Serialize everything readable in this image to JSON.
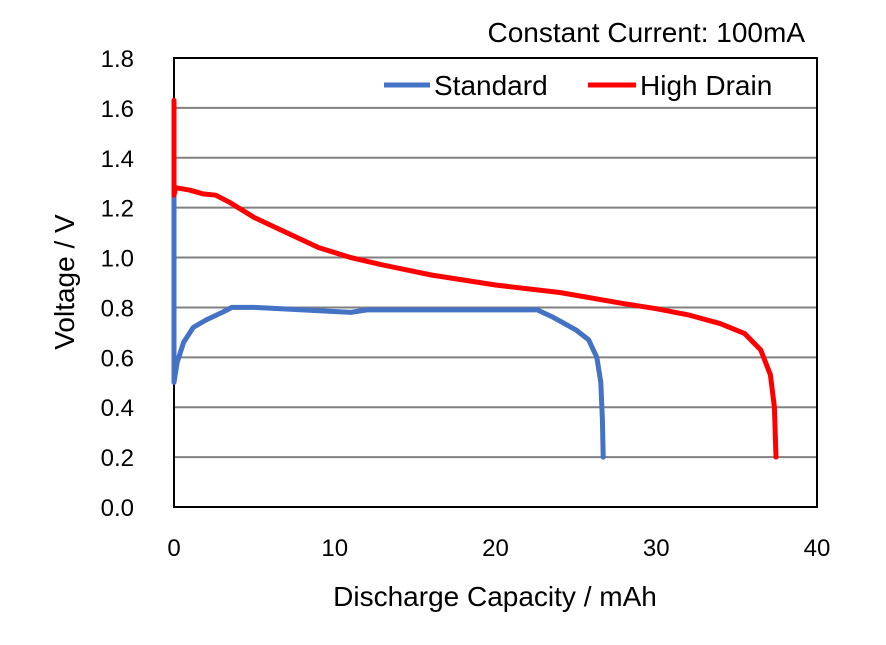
{
  "chart_data": {
    "type": "line",
    "title": "Constant Current: 100mA",
    "xlabel": "Discharge Capacity / mAh",
    "ylabel": "Voltage / V",
    "xlim": [
      0,
      40
    ],
    "ylim": [
      0,
      1.8
    ],
    "xticks": [
      "0",
      "10",
      "20",
      "30",
      "40"
    ],
    "yticks": [
      "0.0",
      "0.2",
      "0.4",
      "0.6",
      "0.8",
      "1.0",
      "1.2",
      "1.4",
      "1.6",
      "1.8"
    ],
    "grid": "horizontal",
    "legend_position": "top-right",
    "series": [
      {
        "name": "Standard",
        "color": "#4472c4",
        "points": [
          [
            0,
            1.25
          ],
          [
            0,
            0.5
          ],
          [
            0.2,
            0.58
          ],
          [
            0.6,
            0.66
          ],
          [
            1.2,
            0.72
          ],
          [
            2,
            0.75
          ],
          [
            3,
            0.78
          ],
          [
            3.6,
            0.8
          ],
          [
            5,
            0.8
          ],
          [
            8,
            0.79
          ],
          [
            11,
            0.78
          ],
          [
            12,
            0.79
          ],
          [
            15,
            0.79
          ],
          [
            22.6,
            0.79
          ],
          [
            23.6,
            0.76
          ],
          [
            25,
            0.71
          ],
          [
            25.8,
            0.67
          ],
          [
            26.3,
            0.6
          ],
          [
            26.55,
            0.5
          ],
          [
            26.65,
            0.35
          ],
          [
            26.7,
            0.2
          ]
        ]
      },
      {
        "name": "High Drain",
        "color": "#ff0000",
        "points": [
          [
            0,
            1.63
          ],
          [
            0,
            1.25
          ],
          [
            0.1,
            1.28
          ],
          [
            1,
            1.27
          ],
          [
            1.8,
            1.255
          ],
          [
            2.6,
            1.25
          ],
          [
            3.5,
            1.22
          ],
          [
            5,
            1.16
          ],
          [
            7,
            1.1
          ],
          [
            9,
            1.04
          ],
          [
            11,
            1.0
          ],
          [
            13,
            0.97
          ],
          [
            16,
            0.93
          ],
          [
            20,
            0.89
          ],
          [
            24,
            0.86
          ],
          [
            28,
            0.815
          ],
          [
            30,
            0.795
          ],
          [
            32,
            0.77
          ],
          [
            34,
            0.735
          ],
          [
            35.5,
            0.695
          ],
          [
            36.5,
            0.63
          ],
          [
            37.1,
            0.53
          ],
          [
            37.35,
            0.4
          ],
          [
            37.45,
            0.2
          ]
        ]
      }
    ]
  }
}
